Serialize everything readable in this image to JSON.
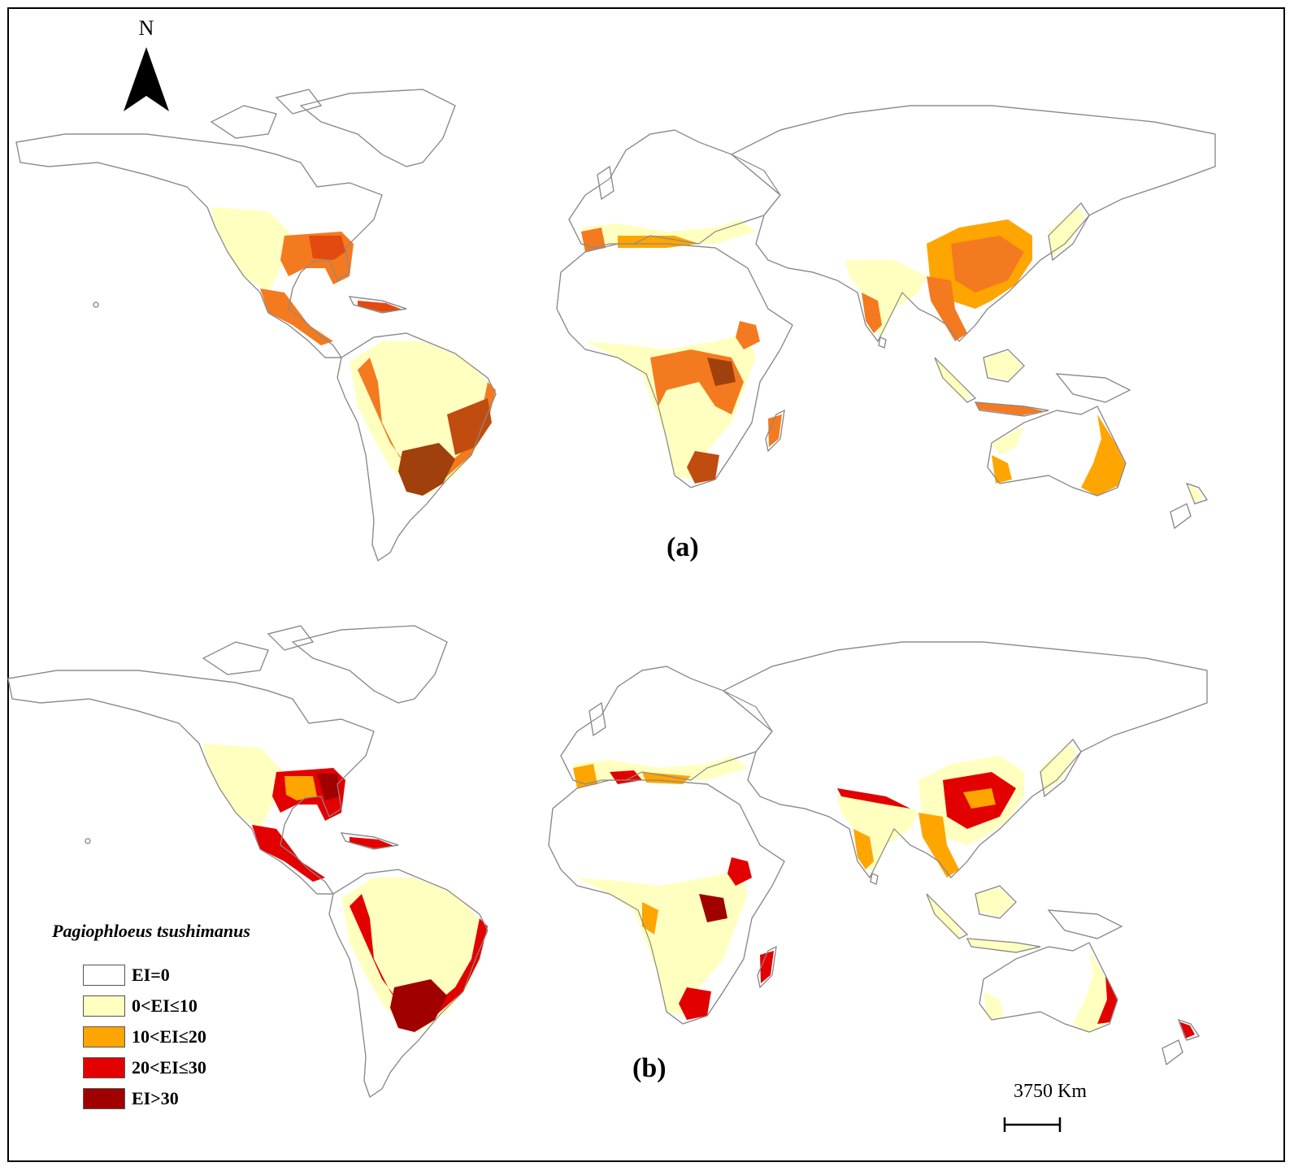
{
  "panels": [
    {
      "label": "(a)"
    },
    {
      "label": "(b)"
    }
  ],
  "north_arrow": {
    "letter": "N"
  },
  "legend": {
    "title": "Pagiophloeus tsushimanus",
    "items": [
      {
        "label": "EI=0",
        "color": "#ffffff"
      },
      {
        "label": "0<EI≤10",
        "color": "#ffffc0"
      },
      {
        "label": "10<EI≤20",
        "color": "#ffa500"
      },
      {
        "label": "20<EI≤30",
        "color": "#e30000"
      },
      {
        "label": "EI>30",
        "color": "#a00000"
      }
    ]
  },
  "scale_bar": {
    "label": "3750  Km"
  },
  "colors": {
    "outline": "#8a8a8a",
    "low": "#ffffc0",
    "mid_a": "#f47a20",
    "mid": "#ffa500",
    "high": "#e30000",
    "very_high": "#a00000"
  }
}
